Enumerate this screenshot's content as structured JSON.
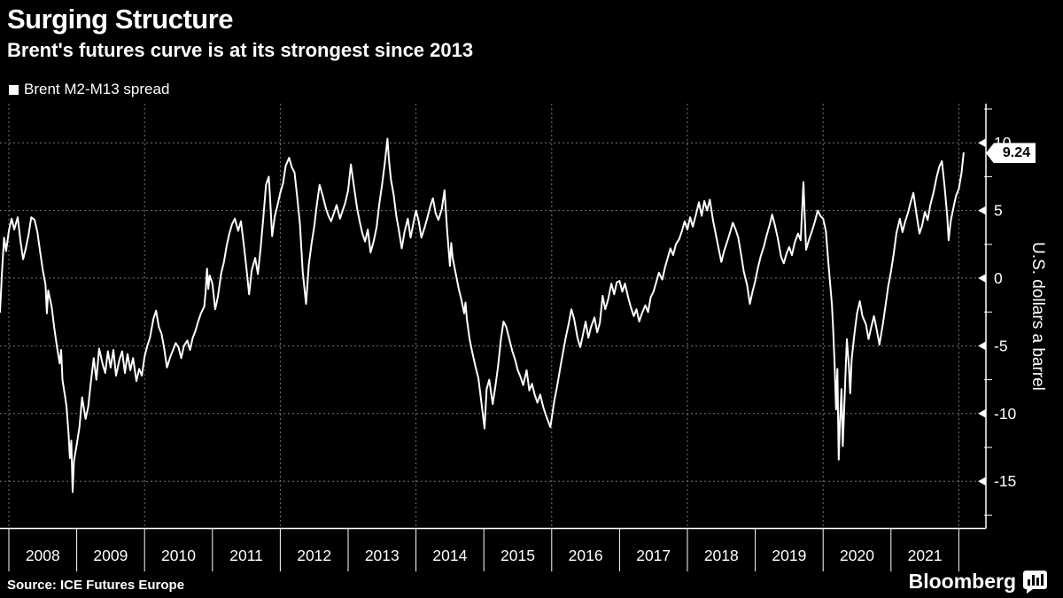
{
  "title": "Surging Structure",
  "subtitle": "Brent's futures curve is at its strongest since 2013",
  "legend": {
    "label": "Brent M2-M13 spread",
    "marker_color": "#ffffff"
  },
  "source": "Source: ICE Futures Europe",
  "brand": {
    "name": "Bloomberg",
    "icon": "bloomberg-chart-bubble-icon"
  },
  "colors": {
    "background": "#000000",
    "text": "#ffffff",
    "line": "#ffffff",
    "grid": "#787878",
    "axis": "#ffffff",
    "tag_bg": "#ffffff",
    "tag_text": "#000000"
  },
  "chart_data": {
    "type": "line",
    "title": "Surging Structure",
    "subtitle": "Brent's futures curve is at its strongest since 2013",
    "series_name": "Brent M2-M13 spread",
    "xlabel": "",
    "ylabel": "U.S. dollars a barrel",
    "legend_position": "top-left",
    "grid": "dashed",
    "ylim": [
      -18.5,
      12.9
    ],
    "xlim_years": [
      2007.87,
      2022.4
    ],
    "y_ticks": [
      10,
      5,
      0,
      -5,
      -10,
      -15
    ],
    "y_minor_ticks": [
      12.5,
      7.5,
      2.5,
      -2.5,
      -7.5,
      -12.5,
      -17.5
    ],
    "x_tick_years": [
      2008,
      2009,
      2010,
      2011,
      2012,
      2013,
      2014,
      2015,
      2016,
      2017,
      2018,
      2019,
      2020,
      2021,
      2022
    ],
    "x_label_years": [
      "2008",
      "2009",
      "2010",
      "2011",
      "2012",
      "2013",
      "2014",
      "2015",
      "2016",
      "2017",
      "2018",
      "2019",
      "2020",
      "2021"
    ],
    "x_gridline_years": [
      2008,
      2010,
      2012,
      2014,
      2016,
      2018,
      2020,
      2022
    ],
    "last_value": 9.24,
    "last_value_label": "9.24",
    "points": [
      [
        2007.87,
        -2.5
      ],
      [
        2007.9,
        0.5
      ],
      [
        2007.93,
        3.0
      ],
      [
        2007.96,
        2.0
      ],
      [
        2008.0,
        3.5
      ],
      [
        2008.04,
        4.4
      ],
      [
        2008.08,
        3.6
      ],
      [
        2008.13,
        4.5
      ],
      [
        2008.17,
        2.8
      ],
      [
        2008.21,
        1.4
      ],
      [
        2008.25,
        2.2
      ],
      [
        2008.29,
        3.2
      ],
      [
        2008.33,
        4.5
      ],
      [
        2008.38,
        4.3
      ],
      [
        2008.42,
        3.4
      ],
      [
        2008.46,
        2.0
      ],
      [
        2008.5,
        0.6
      ],
      [
        2008.54,
        -0.5
      ],
      [
        2008.56,
        -2.6
      ],
      [
        2008.58,
        -0.9
      ],
      [
        2008.63,
        -2.1
      ],
      [
        2008.67,
        -3.7
      ],
      [
        2008.71,
        -5.1
      ],
      [
        2008.75,
        -6.3
      ],
      [
        2008.77,
        -5.3
      ],
      [
        2008.79,
        -7.5
      ],
      [
        2008.83,
        -8.8
      ],
      [
        2008.85,
        -9.5
      ],
      [
        2008.88,
        -11.5
      ],
      [
        2008.9,
        -13.3
      ],
      [
        2008.92,
        -12.0
      ],
      [
        2008.94,
        -15.8
      ],
      [
        2008.96,
        -13.5
      ],
      [
        2009.0,
        -12.3
      ],
      [
        2009.04,
        -11.0
      ],
      [
        2009.08,
        -8.8
      ],
      [
        2009.13,
        -10.4
      ],
      [
        2009.17,
        -9.5
      ],
      [
        2009.21,
        -7.6
      ],
      [
        2009.25,
        -5.9
      ],
      [
        2009.29,
        -7.5
      ],
      [
        2009.33,
        -5.2
      ],
      [
        2009.38,
        -6.3
      ],
      [
        2009.42,
        -7.0
      ],
      [
        2009.46,
        -5.4
      ],
      [
        2009.5,
        -6.6
      ],
      [
        2009.54,
        -5.3
      ],
      [
        2009.58,
        -7.2
      ],
      [
        2009.63,
        -6.0
      ],
      [
        2009.67,
        -5.4
      ],
      [
        2009.71,
        -7.0
      ],
      [
        2009.75,
        -5.6
      ],
      [
        2009.79,
        -6.8
      ],
      [
        2009.83,
        -5.9
      ],
      [
        2009.88,
        -7.6
      ],
      [
        2009.92,
        -6.7
      ],
      [
        2009.96,
        -7.2
      ],
      [
        2010.0,
        -5.8
      ],
      [
        2010.04,
        -5.0
      ],
      [
        2010.08,
        -4.4
      ],
      [
        2010.13,
        -3.0
      ],
      [
        2010.17,
        -2.4
      ],
      [
        2010.21,
        -3.6
      ],
      [
        2010.25,
        -4.1
      ],
      [
        2010.29,
        -5.2
      ],
      [
        2010.33,
        -6.6
      ],
      [
        2010.38,
        -5.8
      ],
      [
        2010.42,
        -5.3
      ],
      [
        2010.46,
        -4.8
      ],
      [
        2010.5,
        -5.1
      ],
      [
        2010.54,
        -5.9
      ],
      [
        2010.58,
        -5.0
      ],
      [
        2010.63,
        -4.6
      ],
      [
        2010.67,
        -5.3
      ],
      [
        2010.71,
        -4.4
      ],
      [
        2010.75,
        -3.9
      ],
      [
        2010.79,
        -3.2
      ],
      [
        2010.83,
        -2.6
      ],
      [
        2010.88,
        -2.1
      ],
      [
        2010.9,
        -1.0
      ],
      [
        2010.92,
        0.7
      ],
      [
        2010.94,
        -0.8
      ],
      [
        2010.96,
        0.2
      ],
      [
        2011.0,
        -0.4
      ],
      [
        2011.04,
        -2.3
      ],
      [
        2011.08,
        -1.4
      ],
      [
        2011.13,
        0.4
      ],
      [
        2011.17,
        1.2
      ],
      [
        2011.21,
        2.4
      ],
      [
        2011.25,
        3.3
      ],
      [
        2011.29,
        4.0
      ],
      [
        2011.33,
        4.4
      ],
      [
        2011.38,
        3.5
      ],
      [
        2011.42,
        4.2
      ],
      [
        2011.46,
        2.6
      ],
      [
        2011.5,
        0.8
      ],
      [
        2011.54,
        -1.2
      ],
      [
        2011.58,
        0.6
      ],
      [
        2011.63,
        1.5
      ],
      [
        2011.67,
        0.3
      ],
      [
        2011.71,
        2.2
      ],
      [
        2011.75,
        4.5
      ],
      [
        2011.79,
        6.9
      ],
      [
        2011.83,
        7.5
      ],
      [
        2011.85,
        5.9
      ],
      [
        2011.88,
        3.1
      ],
      [
        2011.92,
        4.6
      ],
      [
        2011.96,
        5.4
      ],
      [
        2012.0,
        6.3
      ],
      [
        2012.04,
        7.0
      ],
      [
        2012.08,
        8.3
      ],
      [
        2012.13,
        8.9
      ],
      [
        2012.17,
        8.2
      ],
      [
        2012.21,
        7.8
      ],
      [
        2012.25,
        6.0
      ],
      [
        2012.29,
        4.0
      ],
      [
        2012.33,
        0.5
      ],
      [
        2012.38,
        -1.9
      ],
      [
        2012.42,
        1.0
      ],
      [
        2012.46,
        2.5
      ],
      [
        2012.5,
        3.8
      ],
      [
        2012.54,
        5.5
      ],
      [
        2012.58,
        6.9
      ],
      [
        2012.63,
        6.0
      ],
      [
        2012.67,
        5.2
      ],
      [
        2012.71,
        4.6
      ],
      [
        2012.75,
        4.2
      ],
      [
        2012.79,
        4.8
      ],
      [
        2012.83,
        5.4
      ],
      [
        2012.88,
        4.4
      ],
      [
        2012.92,
        5.0
      ],
      [
        2012.96,
        5.6
      ],
      [
        2013.0,
        6.5
      ],
      [
        2013.04,
        8.4
      ],
      [
        2013.08,
        7.0
      ],
      [
        2013.13,
        5.2
      ],
      [
        2013.17,
        4.2
      ],
      [
        2013.21,
        3.3
      ],
      [
        2013.25,
        2.7
      ],
      [
        2013.29,
        3.6
      ],
      [
        2013.33,
        1.9
      ],
      [
        2013.38,
        2.8
      ],
      [
        2013.42,
        3.8
      ],
      [
        2013.46,
        5.5
      ],
      [
        2013.5,
        6.9
      ],
      [
        2013.54,
        8.5
      ],
      [
        2013.58,
        10.3
      ],
      [
        2013.6,
        8.8
      ],
      [
        2013.63,
        7.3
      ],
      [
        2013.67,
        6.2
      ],
      [
        2013.71,
        4.6
      ],
      [
        2013.75,
        3.5
      ],
      [
        2013.79,
        2.2
      ],
      [
        2013.83,
        3.4
      ],
      [
        2013.88,
        4.4
      ],
      [
        2013.92,
        3.0
      ],
      [
        2013.96,
        4.0
      ],
      [
        2014.0,
        5.0
      ],
      [
        2014.04,
        4.2
      ],
      [
        2014.08,
        3.0
      ],
      [
        2014.13,
        3.8
      ],
      [
        2014.17,
        4.5
      ],
      [
        2014.21,
        5.3
      ],
      [
        2014.25,
        5.9
      ],
      [
        2014.29,
        4.8
      ],
      [
        2014.33,
        4.3
      ],
      [
        2014.38,
        5.1
      ],
      [
        2014.42,
        6.5
      ],
      [
        2014.46,
        3.5
      ],
      [
        2014.5,
        0.9
      ],
      [
        2014.52,
        2.6
      ],
      [
        2014.54,
        1.5
      ],
      [
        2014.58,
        0.5
      ],
      [
        2014.63,
        -0.8
      ],
      [
        2014.67,
        -1.6
      ],
      [
        2014.71,
        -2.6
      ],
      [
        2014.73,
        -1.8
      ],
      [
        2014.75,
        -3.0
      ],
      [
        2014.79,
        -4.5
      ],
      [
        2014.83,
        -5.5
      ],
      [
        2014.88,
        -6.6
      ],
      [
        2014.92,
        -7.4
      ],
      [
        2014.96,
        -9.0
      ],
      [
        2015.01,
        -11.1
      ],
      [
        2015.04,
        -8.2
      ],
      [
        2015.08,
        -7.5
      ],
      [
        2015.13,
        -9.3
      ],
      [
        2015.17,
        -8.0
      ],
      [
        2015.21,
        -6.5
      ],
      [
        2015.25,
        -4.6
      ],
      [
        2015.29,
        -3.2
      ],
      [
        2015.33,
        -3.6
      ],
      [
        2015.38,
        -4.6
      ],
      [
        2015.42,
        -5.4
      ],
      [
        2015.46,
        -6.0
      ],
      [
        2015.5,
        -6.8
      ],
      [
        2015.54,
        -7.3
      ],
      [
        2015.58,
        -7.9
      ],
      [
        2015.63,
        -6.8
      ],
      [
        2015.67,
        -8.3
      ],
      [
        2015.71,
        -7.8
      ],
      [
        2015.75,
        -8.6
      ],
      [
        2015.79,
        -9.2
      ],
      [
        2015.83,
        -8.6
      ],
      [
        2015.88,
        -9.6
      ],
      [
        2015.92,
        -10.2
      ],
      [
        2015.98,
        -11.0
      ],
      [
        2016.04,
        -9.0
      ],
      [
        2016.08,
        -8.0
      ],
      [
        2016.13,
        -6.5
      ],
      [
        2016.17,
        -5.4
      ],
      [
        2016.21,
        -4.3
      ],
      [
        2016.25,
        -3.4
      ],
      [
        2016.29,
        -2.3
      ],
      [
        2016.33,
        -3.0
      ],
      [
        2016.38,
        -4.4
      ],
      [
        2016.42,
        -5.1
      ],
      [
        2016.46,
        -4.2
      ],
      [
        2016.5,
        -3.2
      ],
      [
        2016.54,
        -4.4
      ],
      [
        2016.58,
        -3.6
      ],
      [
        2016.63,
        -2.9
      ],
      [
        2016.67,
        -4.0
      ],
      [
        2016.71,
        -3.3
      ],
      [
        2016.75,
        -1.3
      ],
      [
        2016.79,
        -2.3
      ],
      [
        2016.83,
        -1.6
      ],
      [
        2016.88,
        -0.4
      ],
      [
        2016.92,
        -1.2
      ],
      [
        2016.96,
        -0.3
      ],
      [
        2017.0,
        -0.2
      ],
      [
        2017.04,
        -1.0
      ],
      [
        2017.08,
        -0.4
      ],
      [
        2017.13,
        -1.5
      ],
      [
        2017.17,
        -2.2
      ],
      [
        2017.21,
        -2.8
      ],
      [
        2017.25,
        -2.3
      ],
      [
        2017.29,
        -3.2
      ],
      [
        2017.33,
        -2.6
      ],
      [
        2017.38,
        -2.0
      ],
      [
        2017.42,
        -2.5
      ],
      [
        2017.46,
        -1.4
      ],
      [
        2017.5,
        -1.0
      ],
      [
        2017.54,
        -0.3
      ],
      [
        2017.58,
        0.4
      ],
      [
        2017.63,
        -0.1
      ],
      [
        2017.67,
        0.8
      ],
      [
        2017.71,
        1.5
      ],
      [
        2017.75,
        2.2
      ],
      [
        2017.79,
        1.7
      ],
      [
        2017.83,
        2.5
      ],
      [
        2017.88,
        2.9
      ],
      [
        2017.92,
        3.5
      ],
      [
        2017.96,
        4.2
      ],
      [
        2018.0,
        3.6
      ],
      [
        2018.04,
        4.5
      ],
      [
        2018.08,
        3.8
      ],
      [
        2018.13,
        4.8
      ],
      [
        2018.17,
        5.6
      ],
      [
        2018.21,
        4.6
      ],
      [
        2018.25,
        5.7
      ],
      [
        2018.29,
        5.0
      ],
      [
        2018.33,
        5.8
      ],
      [
        2018.38,
        4.2
      ],
      [
        2018.42,
        3.2
      ],
      [
        2018.46,
        2.2
      ],
      [
        2018.5,
        1.2
      ],
      [
        2018.54,
        2.0
      ],
      [
        2018.58,
        2.6
      ],
      [
        2018.63,
        3.4
      ],
      [
        2018.67,
        4.1
      ],
      [
        2018.71,
        3.6
      ],
      [
        2018.75,
        3.0
      ],
      [
        2018.79,
        1.8
      ],
      [
        2018.83,
        0.5
      ],
      [
        2018.88,
        -0.5
      ],
      [
        2018.92,
        -1.9
      ],
      [
        2018.96,
        -1.0
      ],
      [
        2019.0,
        -0.2
      ],
      [
        2019.04,
        0.8
      ],
      [
        2019.08,
        1.6
      ],
      [
        2019.13,
        2.4
      ],
      [
        2019.17,
        3.2
      ],
      [
        2019.21,
        3.9
      ],
      [
        2019.25,
        4.7
      ],
      [
        2019.29,
        3.9
      ],
      [
        2019.33,
        3.0
      ],
      [
        2019.38,
        1.6
      ],
      [
        2019.42,
        1.1
      ],
      [
        2019.46,
        1.8
      ],
      [
        2019.5,
        2.3
      ],
      [
        2019.54,
        1.7
      ],
      [
        2019.58,
        2.6
      ],
      [
        2019.63,
        3.3
      ],
      [
        2019.67,
        2.8
      ],
      [
        2019.71,
        7.1
      ],
      [
        2019.73,
        4.5
      ],
      [
        2019.75,
        2.1
      ],
      [
        2019.79,
        2.8
      ],
      [
        2019.83,
        3.4
      ],
      [
        2019.88,
        4.2
      ],
      [
        2019.92,
        5.0
      ],
      [
        2019.96,
        4.6
      ],
      [
        2020.0,
        4.4
      ],
      [
        2020.04,
        3.5
      ],
      [
        2020.08,
        1.0
      ],
      [
        2020.13,
        -2.0
      ],
      [
        2020.15,
        -4.0
      ],
      [
        2020.17,
        -6.4
      ],
      [
        2020.19,
        -9.7
      ],
      [
        2020.21,
        -6.7
      ],
      [
        2020.23,
        -13.4
      ],
      [
        2020.25,
        -10.5
      ],
      [
        2020.27,
        -8.2
      ],
      [
        2020.29,
        -12.4
      ],
      [
        2020.33,
        -7.0
      ],
      [
        2020.35,
        -4.5
      ],
      [
        2020.38,
        -6.5
      ],
      [
        2020.4,
        -8.5
      ],
      [
        2020.42,
        -6.0
      ],
      [
        2020.46,
        -4.2
      ],
      [
        2020.5,
        -2.6
      ],
      [
        2020.54,
        -1.7
      ],
      [
        2020.58,
        -2.8
      ],
      [
        2020.63,
        -3.4
      ],
      [
        2020.67,
        -4.5
      ],
      [
        2020.71,
        -3.6
      ],
      [
        2020.75,
        -2.8
      ],
      [
        2020.79,
        -3.8
      ],
      [
        2020.83,
        -4.9
      ],
      [
        2020.88,
        -3.4
      ],
      [
        2020.92,
        -2.0
      ],
      [
        2020.96,
        -0.6
      ],
      [
        2021.0,
        0.5
      ],
      [
        2021.04,
        1.8
      ],
      [
        2021.08,
        3.3
      ],
      [
        2021.13,
        4.4
      ],
      [
        2021.17,
        3.4
      ],
      [
        2021.21,
        4.2
      ],
      [
        2021.25,
        4.8
      ],
      [
        2021.29,
        5.6
      ],
      [
        2021.33,
        6.3
      ],
      [
        2021.38,
        4.6
      ],
      [
        2021.42,
        3.3
      ],
      [
        2021.46,
        3.9
      ],
      [
        2021.5,
        4.9
      ],
      [
        2021.54,
        4.3
      ],
      [
        2021.58,
        5.4
      ],
      [
        2021.63,
        6.4
      ],
      [
        2021.67,
        7.4
      ],
      [
        2021.71,
        8.2
      ],
      [
        2021.75,
        8.65
      ],
      [
        2021.79,
        6.8
      ],
      [
        2021.83,
        4.5
      ],
      [
        2021.85,
        2.8
      ],
      [
        2021.88,
        4.2
      ],
      [
        2021.92,
        5.2
      ],
      [
        2021.96,
        6.1
      ],
      [
        2022.0,
        6.6
      ],
      [
        2022.04,
        7.8
      ],
      [
        2022.07,
        9.24
      ]
    ]
  }
}
